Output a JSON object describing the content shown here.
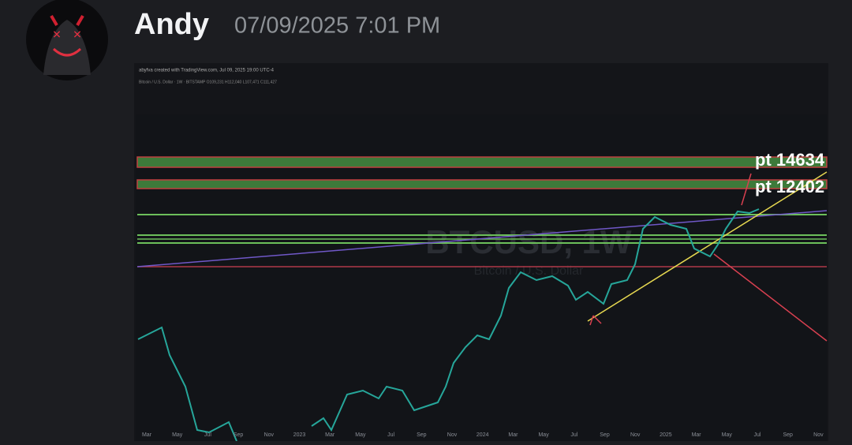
{
  "header": {
    "username": "Andy",
    "timestamp": "07/09/2025 7:01 PM"
  },
  "chart": {
    "attribution": "abyfva created with TradingView.com, Jul 09, 2025 19:00 UTC-4",
    "symbol_info": "Bitcoin / U.S. Dollar · 1W · BITSTAMP  O109,231 H112,040 L107,471 C111,427",
    "watermark_symbol": "BTCUSD, 1W",
    "watermark_name": "Bitcoin / U.S. Dollar",
    "annotations": [
      "pt 14634",
      "pt 12402"
    ],
    "x_axis_labels": [
      "Mar",
      "May",
      "Jul",
      "Sep",
      "Nov",
      "2023",
      "Mar",
      "May",
      "Jul",
      "Sep",
      "Nov",
      "2024",
      "Mar",
      "May",
      "Jul",
      "Sep",
      "Nov",
      "2025",
      "Mar",
      "May",
      "Jul",
      "Sep",
      "Nov"
    ]
  }
}
